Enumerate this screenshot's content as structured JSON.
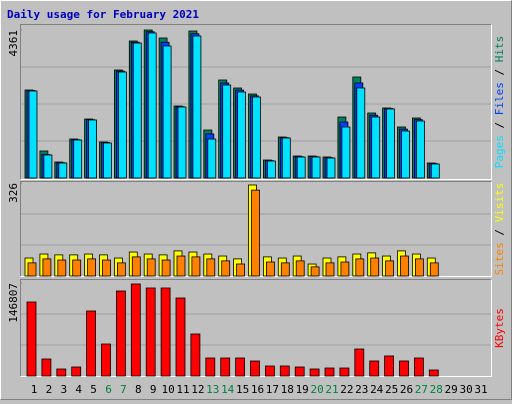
{
  "chart_data": [
    {
      "type": "bar",
      "title": "Daily usage for February 2021",
      "ylim": [
        0,
        4361
      ],
      "yticks": [
        4361
      ],
      "grid_divisions": 4,
      "legend_separator": "/",
      "series": [
        {
          "name": "Hits",
          "color": "#00805c",
          "values": [
            2593,
            796,
            471,
            1149,
            1738,
            1061,
            3182,
            4037,
            4361,
            4125,
            2121,
            4331,
            1414,
            2888,
            2652,
            2475,
            530,
            1208,
            648,
            648,
            619,
            1797,
            2976,
            1915,
            2063,
            1503,
            1768,
            442,
            null,
            null,
            null
          ]
        },
        {
          "name": "Files",
          "color": "#0040ff",
          "values": [
            2580,
            690,
            450,
            1130,
            1720,
            1045,
            3150,
            4000,
            4310,
            4000,
            2105,
            4250,
            1300,
            2800,
            2590,
            2420,
            515,
            1190,
            630,
            630,
            600,
            1650,
            2800,
            1850,
            2050,
            1440,
            1720,
            425,
            null,
            null,
            null
          ]
        },
        {
          "name": "Pages",
          "color": "#00e0ff",
          "values": [
            2564,
            678,
            442,
            1120,
            1709,
            1031,
            3123,
            3977,
            4273,
            3890,
            2093,
            4184,
            1149,
            2740,
            2534,
            2387,
            501,
            1179,
            619,
            619,
            589,
            1503,
            2652,
            1797,
            2034,
            1385,
            1680,
            413,
            null,
            null,
            null
          ]
        }
      ]
    },
    {
      "type": "bar",
      "ylim": [
        0,
        326
      ],
      "yticks": [
        326
      ],
      "grid_divisions": 3,
      "legend_separator": "/",
      "series": [
        {
          "name": "Visits",
          "color": "#ffff00",
          "values": [
            63,
            77,
            74,
            74,
            77,
            74,
            63,
            84,
            77,
            74,
            88,
            84,
            77,
            70,
            60,
            319,
            67,
            63,
            70,
            42,
            63,
            67,
            77,
            81,
            70,
            88,
            77,
            63,
            null,
            null,
            null
          ]
        },
        {
          "name": "Sites",
          "color": "#ff8000",
          "values": [
            46,
            60,
            56,
            56,
            60,
            56,
            46,
            67,
            60,
            56,
            70,
            67,
            60,
            53,
            42,
            301,
            49,
            46,
            53,
            32,
            46,
            49,
            60,
            63,
            53,
            70,
            60,
            46,
            null,
            null,
            null
          ]
        }
      ]
    },
    {
      "type": "bar",
      "ylim": [
        0,
        146807
      ],
      "yticks": [
        146807
      ],
      "grid_divisions": 3,
      "categories": [
        "1",
        "2",
        "3",
        "4",
        "5",
        "6",
        "7",
        "8",
        "9",
        "10",
        "11",
        "12",
        "13",
        "14",
        "15",
        "16",
        "17",
        "18",
        "19",
        "20",
        "21",
        "22",
        "23",
        "24",
        "25",
        "26",
        "27",
        "28",
        "29",
        "30",
        "31"
      ],
      "category_colors": [
        "#000000",
        "#000000",
        "#000000",
        "#000000",
        "#000000",
        "#008040",
        "#008040",
        "#000000",
        "#000000",
        "#000000",
        "#000000",
        "#000000",
        "#008040",
        "#008040",
        "#000000",
        "#000000",
        "#000000",
        "#000000",
        "#000000",
        "#008040",
        "#008040",
        "#000000",
        "#000000",
        "#000000",
        "#000000",
        "#000000",
        "#008040",
        "#008040",
        "#000000",
        "#000000",
        "#000000"
      ],
      "series": [
        {
          "name": "KBytes",
          "color": "#ff0000",
          "values": [
            116810,
            26836,
            11050,
            14207,
            102600,
            50514,
            134178,
            145228,
            138914,
            138914,
            123124,
            66300,
            28400,
            28400,
            28400,
            23678,
            15786,
            15786,
            14200,
            11050,
            12600,
            12600,
            42600,
            23700,
            31600,
            23700,
            28400,
            9470,
            null,
            null,
            null
          ]
        }
      ]
    }
  ]
}
